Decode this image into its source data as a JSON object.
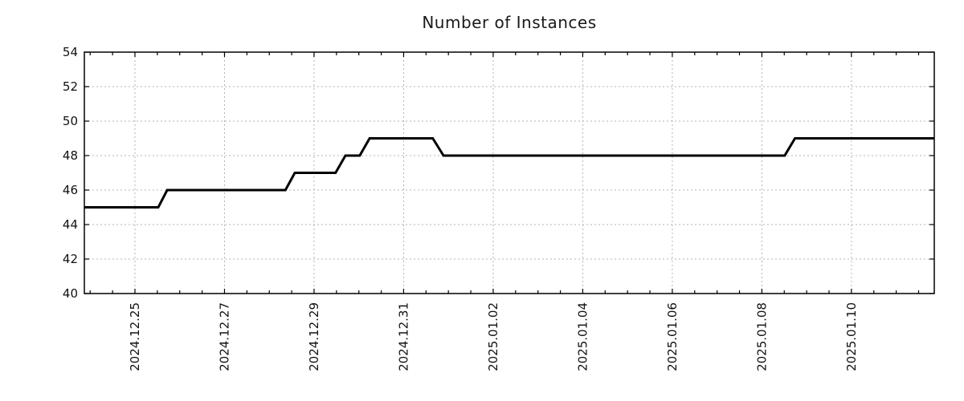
{
  "title": "Number of Instances",
  "colors": {
    "line": "#000000",
    "grid": "#b3b3b3",
    "border": "#000000",
    "text": "#1a1a1a",
    "background": "#ffffff"
  },
  "chart_data": {
    "type": "line",
    "title": "Number of Instances",
    "xlabel": "",
    "ylabel": "",
    "legend": "none",
    "grid": "dotted gray at major ticks, both axes",
    "x_unit": "days since 2024-12-25 00:00",
    "x_range": [
      -1.13,
      17.85
    ],
    "y_range": [
      40,
      54
    ],
    "y_ticks": [
      40,
      42,
      44,
      46,
      48,
      50,
      52,
      54
    ],
    "x_minor_tick_interval": 0.5,
    "x_major_ticks": [
      {
        "day": 0,
        "label": "2024.12.25"
      },
      {
        "day": 2,
        "label": "2024.12.27"
      },
      {
        "day": 4,
        "label": "2024.12.29"
      },
      {
        "day": 6,
        "label": "2024.12.31"
      },
      {
        "day": 8,
        "label": "2025.01.02"
      },
      {
        "day": 10,
        "label": "2025.01.04"
      },
      {
        "day": 12,
        "label": "2025.01.06"
      },
      {
        "day": 14,
        "label": "2025.01.08"
      },
      {
        "day": 16,
        "label": "2025.01.10"
      }
    ],
    "series": [
      {
        "name": "instances",
        "color": "#000000",
        "points": [
          [
            -1.13,
            45
          ],
          [
            0.52,
            45
          ],
          [
            0.72,
            46
          ],
          [
            3.36,
            46
          ],
          [
            3.57,
            47
          ],
          [
            4.48,
            47
          ],
          [
            4.7,
            48
          ],
          [
            5.02,
            48
          ],
          [
            5.24,
            49
          ],
          [
            6.65,
            49
          ],
          [
            6.89,
            48
          ],
          [
            14.51,
            48
          ],
          [
            14.74,
            49
          ],
          [
            17.85,
            49
          ]
        ]
      }
    ]
  }
}
